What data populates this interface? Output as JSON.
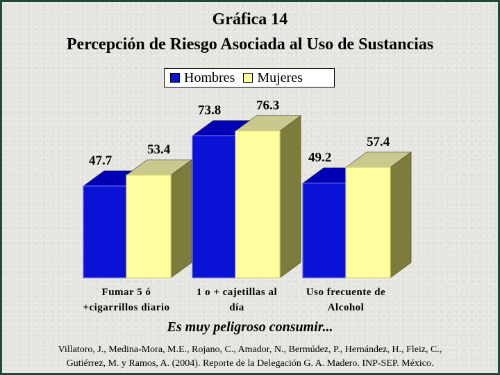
{
  "title": "Gráfica 14",
  "subtitle": "Percepción de Riesgo Asociada al Uso de Sustancias",
  "caption": "Es muy peligroso consumir...",
  "citation": {
    "line1": "Villatoro, J., Medina-Mora, M.E., Rojano, C., Amador, N., Bermúdez, P., Hernández, H., Fleiz, C.,",
    "line2": "Gutiérrez, M. y Ramos, A. (2004). Reporte de la Delegación G. A. Madero. INP-SEP. México."
  },
  "chart_data": {
    "type": "bar",
    "three_d": true,
    "title": "Percepción de Riesgo Asociada al Uso de Sustancias",
    "categories": [
      [
        "Fumar 5 ó",
        "+cigarrillos diario"
      ],
      [
        "1 o + cajetillas al",
        "día"
      ],
      [
        "Uso frecuente de",
        "Alcohol"
      ]
    ],
    "series": [
      {
        "name": "Hombres",
        "values": [
          47.7,
          73.8,
          49.2
        ],
        "color": "#0a12d6"
      },
      {
        "name": "Mujeres",
        "values": [
          53.4,
          76.3,
          57.4
        ],
        "color": "#ffffa0"
      }
    ],
    "legend_position": "top-center",
    "grid": false,
    "data_labels": true
  }
}
